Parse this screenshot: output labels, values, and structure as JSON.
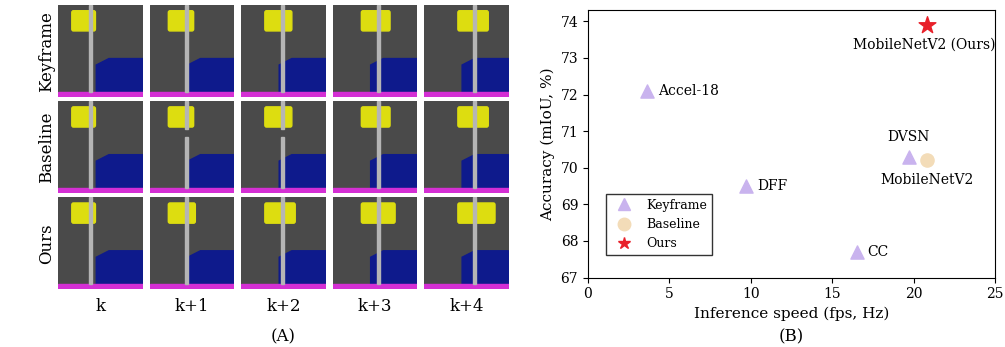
{
  "image_grid": {
    "rows": [
      "Keyframe",
      "Baseline",
      "Ours"
    ],
    "columns": [
      "k",
      "k+1",
      "k+2",
      "k+3",
      "k+4"
    ],
    "caption": "(A)"
  },
  "chart_data": {
    "type": "scatter",
    "caption": "(B)",
    "x_label": "Inference speed (fps, Hz)",
    "y_label": "Accuracy (mIoU, %)",
    "xlim": [
      0,
      25
    ],
    "xticks": [
      0,
      5,
      10,
      15,
      20,
      25
    ],
    "ylim": [
      67,
      74.3
    ],
    "yticks": [
      67,
      68,
      69,
      70,
      71,
      72,
      73,
      74
    ],
    "legend": "lower left",
    "grid": false,
    "series": [
      {
        "name": "Keyframe",
        "color": "#c9b3ee",
        "marker": "triangle",
        "x": [
          3.6,
          9.7,
          16.5,
          19.7
        ],
        "values": [
          72.1,
          69.5,
          67.7,
          70.3
        ],
        "point_labels": [
          "Accel-18",
          "DFF",
          "CC",
          "DVSN"
        ]
      },
      {
        "name": "Baseline",
        "color": "#f3dcb8",
        "marker": "circle",
        "x": [
          20.8
        ],
        "values": [
          70.2
        ],
        "point_labels": [
          "MobileNetV2"
        ]
      },
      {
        "name": "Ours",
        "color": "#e8202a",
        "marker": "star",
        "x": [
          20.8
        ],
        "values": [
          73.9
        ],
        "point_labels": [
          "MobileNetV2 (Ours)"
        ]
      }
    ]
  }
}
